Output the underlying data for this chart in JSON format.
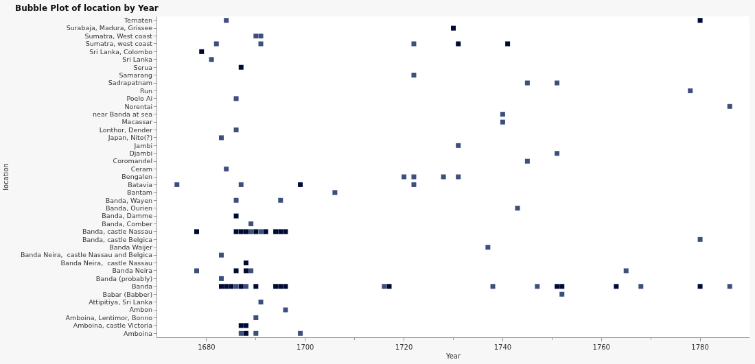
{
  "chart_data": {
    "type": "scatter",
    "title": "Bubble Plot of location by Year",
    "xlabel": "Year",
    "ylabel": "location",
    "orientation": "horizontal",
    "categories": [
      "Ternaten",
      "Surabaja, Madura, Grissee",
      "Sumatra, West coast",
      "Sumatra, west coast",
      "Sri Lanka, Colombo",
      "Sri Lanka",
      "Serua",
      "Samarang",
      "Sadrapatnam",
      "Run",
      "Poelo Ai",
      "Norentai",
      "near Banda at sea",
      "Macassar",
      "Lonthor, Dender",
      "Japan, Nito(?)",
      "Jambi",
      "Djambi",
      "Coromandel",
      "Ceram",
      "Bengalen",
      "Batavia",
      "Bantam",
      "Banda, Wayen",
      "Banda, Ourien",
      "Banda, Damme",
      "Banda, Comber",
      "Banda, castle Nassau",
      "Banda, castle Belgica",
      "Banda Waijer",
      "Banda Neira,  castle Nassau and Belgica",
      "Banda Neira,  castle Nassau",
      "Banda Neira",
      "Banda (probably)",
      "Banda",
      "Babar (Babber)",
      "Attipitiya, Sri Lanka",
      "Ambon",
      "Amboina, Lentimor, Bonno",
      "Amboina, castle Victoria",
      "Amboina"
    ],
    "xlim": [
      1670,
      1790
    ],
    "xticks": [
      1680,
      {
        "value": 1690,
        "label": null
      },
      1700,
      {
        "value": 1710,
        "label": null
      },
      1720,
      {
        "value": 1730,
        "label": null
      },
      1740,
      {
        "value": 1750,
        "label": null
      },
      1760,
      {
        "value": 1770,
        "label": null
      },
      1780
    ],
    "marker": "square",
    "series": [
      {
        "values": [
          1684,
          1730,
          1690,
          1682,
          1679,
          1681,
          1687,
          1722,
          1745,
          1778,
          1686,
          1786,
          1740,
          1740,
          1686,
          1683,
          1731,
          1751,
          1745,
          1684,
          1720,
          1674,
          1706,
          1686,
          1743,
          1686,
          1689,
          1678,
          1780,
          1737,
          1683,
          1688,
          1678,
          1683,
          1683,
          1752,
          1691,
          1696,
          1690,
          1687,
          1687
        ],
        "colors": [
          "#3d4f7c",
          "#000a33",
          "#3d4f7c",
          "#3d4f7c",
          "#000a33",
          "#3d4f7c",
          "#000a33",
          "#3d4f7c",
          "#3d4f7c",
          "#3d4f7c",
          "#3d4f7c",
          "#3d4f7c",
          "#3d4f7c",
          "#3d4f7c",
          "#3d4f7c",
          "#3d4f7c",
          "#3d4f7c",
          "#3d4f7c",
          "#3d4f7c",
          "#3d4f7c",
          "#3d4f7c",
          "#3d4f7c",
          "#3d4f7c",
          "#3d4f7c",
          "#3d4f7c",
          "#000a33",
          "#3d4f7c",
          "#000a33",
          "#3d4f7c",
          "#3d4f7c",
          "#3d4f7c",
          "#000a33",
          "#3d4f7c",
          "#3d4f7c",
          "#000a33",
          "#3d4f7c",
          "#3d4f7c",
          "#3d4f7c",
          "#3d4f7c",
          "#000a33",
          "#3d4f7c"
        ]
      },
      {
        "values": [
          1780,
          null,
          1691,
          1691,
          null,
          null,
          null,
          null,
          1751,
          null,
          null,
          null,
          null,
          null,
          null,
          null,
          null,
          null,
          null,
          null,
          1722,
          1687,
          null,
          1695,
          null,
          null,
          null,
          1686,
          null,
          null,
          null,
          null,
          1686,
          null,
          1684,
          null,
          null,
          null,
          null,
          1688,
          1688
        ],
        "colors": [
          "#000a33",
          null,
          "#3d4f7c",
          "#3d4f7c",
          null,
          null,
          null,
          null,
          "#3d4f7c",
          null,
          null,
          null,
          null,
          null,
          null,
          null,
          null,
          null,
          null,
          null,
          "#3d4f7c",
          "#3d4f7c",
          null,
          "#3d4f7c",
          null,
          null,
          null,
          "#000a33",
          null,
          null,
          null,
          null,
          "#000a33",
          null,
          "#000a33",
          null,
          null,
          null,
          null,
          "#000a33",
          "#000a33"
        ]
      },
      {
        "values": [
          null,
          null,
          null,
          1722,
          null,
          null,
          null,
          null,
          null,
          null,
          null,
          null,
          null,
          null,
          null,
          null,
          null,
          null,
          null,
          null,
          1728,
          1699,
          null,
          null,
          null,
          null,
          null,
          1687,
          null,
          null,
          null,
          null,
          1688,
          null,
          1685,
          null,
          null,
          null,
          null,
          null,
          1690
        ],
        "colors": [
          null,
          null,
          null,
          "#3d4f7c",
          null,
          null,
          null,
          null,
          null,
          null,
          null,
          null,
          null,
          null,
          null,
          null,
          null,
          null,
          null,
          null,
          "#3d4f7c",
          "#000a33",
          null,
          null,
          null,
          null,
          null,
          "#000a33",
          null,
          null,
          null,
          null,
          "#000a33",
          null,
          "#000a33",
          null,
          null,
          null,
          null,
          null,
          "#3d4f7c"
        ]
      },
      {
        "values": [
          null,
          null,
          null,
          1731,
          null,
          null,
          null,
          null,
          null,
          null,
          null,
          null,
          null,
          null,
          null,
          null,
          null,
          null,
          null,
          null,
          1731,
          1722,
          null,
          null,
          null,
          null,
          null,
          1688,
          null,
          null,
          null,
          null,
          1689,
          null,
          1686,
          null,
          null,
          null,
          null,
          null,
          1699
        ],
        "colors": [
          null,
          null,
          null,
          "#000a33",
          null,
          null,
          null,
          null,
          null,
          null,
          null,
          null,
          null,
          null,
          null,
          null,
          null,
          null,
          null,
          null,
          "#3d4f7c",
          "#3d4f7c",
          null,
          null,
          null,
          null,
          null,
          "#000a33",
          null,
          null,
          null,
          null,
          "#3d4f7c",
          null,
          "#3d4f7c",
          null,
          null,
          null,
          null,
          null,
          "#3d4f7c"
        ]
      },
      {
        "values": [
          null,
          null,
          null,
          1741,
          null,
          null,
          null,
          null,
          null,
          null,
          null,
          null,
          null,
          null,
          null,
          null,
          null,
          null,
          null,
          null,
          null,
          null,
          null,
          null,
          null,
          null,
          null,
          1689,
          null,
          null,
          null,
          null,
          1765,
          null,
          1687,
          null,
          null,
          null,
          null,
          null,
          null
        ],
        "colors": [
          null,
          null,
          null,
          "#000a33",
          null,
          null,
          null,
          null,
          null,
          null,
          null,
          null,
          null,
          null,
          null,
          null,
          null,
          null,
          null,
          null,
          null,
          null,
          null,
          null,
          null,
          null,
          null,
          "#3d4f7c",
          null,
          null,
          null,
          null,
          "#3d4f7c",
          null,
          "#000a33",
          null,
          null,
          null,
          null,
          null,
          null
        ]
      },
      {
        "values": [
          null,
          null,
          null,
          null,
          null,
          null,
          null,
          null,
          null,
          null,
          null,
          null,
          null,
          null,
          null,
          null,
          null,
          null,
          null,
          null,
          null,
          null,
          null,
          null,
          null,
          null,
          null,
          1690,
          null,
          null,
          null,
          null,
          null,
          null,
          1688,
          null,
          null,
          null,
          null,
          null,
          null
        ],
        "colors": [
          null,
          null,
          null,
          null,
          null,
          null,
          null,
          null,
          null,
          null,
          null,
          null,
          null,
          null,
          null,
          null,
          null,
          null,
          null,
          null,
          null,
          null,
          null,
          null,
          null,
          null,
          null,
          "#000a33",
          null,
          null,
          null,
          null,
          null,
          null,
          "#3d4f7c",
          null,
          null,
          null,
          null,
          null,
          null
        ]
      },
      {
        "values": [
          null,
          null,
          null,
          null,
          null,
          null,
          null,
          null,
          null,
          null,
          null,
          null,
          null,
          null,
          null,
          null,
          null,
          null,
          null,
          null,
          null,
          null,
          null,
          null,
          null,
          null,
          null,
          1691,
          null,
          null,
          null,
          null,
          null,
          null,
          1690,
          null,
          null,
          null,
          null,
          null,
          null
        ],
        "colors": [
          null,
          null,
          null,
          null,
          null,
          null,
          null,
          null,
          null,
          null,
          null,
          null,
          null,
          null,
          null,
          null,
          null,
          null,
          null,
          null,
          null,
          null,
          null,
          null,
          null,
          null,
          null,
          "#3d4f7c",
          null,
          null,
          null,
          null,
          null,
          null,
          "#000a33",
          null,
          null,
          null,
          null,
          null,
          null
        ]
      },
      {
        "values": [
          null,
          null,
          null,
          null,
          null,
          null,
          null,
          null,
          null,
          null,
          null,
          null,
          null,
          null,
          null,
          null,
          null,
          null,
          null,
          null,
          null,
          null,
          null,
          null,
          null,
          null,
          null,
          1692,
          null,
          null,
          null,
          null,
          null,
          null,
          1694,
          null,
          null,
          null,
          null,
          null,
          null
        ],
        "colors": [
          null,
          null,
          null,
          null,
          null,
          null,
          null,
          null,
          null,
          null,
          null,
          null,
          null,
          null,
          null,
          null,
          null,
          null,
          null,
          null,
          null,
          null,
          null,
          null,
          null,
          null,
          null,
          "#000a33",
          null,
          null,
          null,
          null,
          null,
          null,
          "#000a33",
          null,
          null,
          null,
          null,
          null,
          null
        ]
      },
      {
        "values": [
          null,
          null,
          null,
          null,
          null,
          null,
          null,
          null,
          null,
          null,
          null,
          null,
          null,
          null,
          null,
          null,
          null,
          null,
          null,
          null,
          null,
          null,
          null,
          null,
          null,
          null,
          null,
          1694,
          null,
          null,
          null,
          null,
          null,
          null,
          1695,
          null,
          null,
          null,
          null,
          null,
          null
        ],
        "colors": [
          null,
          null,
          null,
          null,
          null,
          null,
          null,
          null,
          null,
          null,
          null,
          null,
          null,
          null,
          null,
          null,
          null,
          null,
          null,
          null,
          null,
          null,
          null,
          null,
          null,
          null,
          null,
          "#000a33",
          null,
          null,
          null,
          null,
          null,
          null,
          "#000a33",
          null,
          null,
          null,
          null,
          null,
          null
        ]
      },
      {
        "values": [
          null,
          null,
          null,
          null,
          null,
          null,
          null,
          null,
          null,
          null,
          null,
          null,
          null,
          null,
          null,
          null,
          null,
          null,
          null,
          null,
          null,
          null,
          null,
          null,
          null,
          null,
          null,
          1695,
          null,
          null,
          null,
          null,
          null,
          null,
          1696,
          null,
          null,
          null,
          null,
          null,
          null
        ],
        "colors": [
          null,
          null,
          null,
          null,
          null,
          null,
          null,
          null,
          null,
          null,
          null,
          null,
          null,
          null,
          null,
          null,
          null,
          null,
          null,
          null,
          null,
          null,
          null,
          null,
          null,
          null,
          null,
          "#000a33",
          null,
          null,
          null,
          null,
          null,
          null,
          "#000a33",
          null,
          null,
          null,
          null,
          null,
          null
        ]
      },
      {
        "values": [
          null,
          null,
          null,
          null,
          null,
          null,
          null,
          null,
          null,
          null,
          null,
          null,
          null,
          null,
          null,
          null,
          null,
          null,
          null,
          null,
          null,
          null,
          null,
          null,
          null,
          null,
          null,
          1696,
          null,
          null,
          null,
          null,
          null,
          null,
          1716,
          null,
          null,
          null,
          null,
          null,
          null
        ],
        "colors": [
          null,
          null,
          null,
          null,
          null,
          null,
          null,
          null,
          null,
          null,
          null,
          null,
          null,
          null,
          null,
          null,
          null,
          null,
          null,
          null,
          null,
          null,
          null,
          null,
          null,
          null,
          null,
          "#000a33",
          null,
          null,
          null,
          null,
          null,
          null,
          "#3d4f7c",
          null,
          null,
          null,
          null,
          null,
          null
        ]
      },
      {
        "values": [
          null,
          null,
          null,
          null,
          null,
          null,
          null,
          null,
          null,
          null,
          null,
          null,
          null,
          null,
          null,
          null,
          null,
          null,
          null,
          null,
          null,
          null,
          null,
          null,
          null,
          null,
          null,
          null,
          null,
          null,
          null,
          null,
          null,
          null,
          1717,
          null,
          null,
          null,
          null,
          null,
          null
        ],
        "colors": [
          null,
          null,
          null,
          null,
          null,
          null,
          null,
          null,
          null,
          null,
          null,
          null,
          null,
          null,
          null,
          null,
          null,
          null,
          null,
          null,
          null,
          null,
          null,
          null,
          null,
          null,
          null,
          null,
          null,
          null,
          null,
          null,
          null,
          null,
          "#000a33",
          null,
          null,
          null,
          null,
          null,
          null
        ]
      },
      {
        "values": [
          null,
          null,
          null,
          null,
          null,
          null,
          null,
          null,
          null,
          null,
          null,
          null,
          null,
          null,
          null,
          null,
          null,
          null,
          null,
          null,
          null,
          null,
          null,
          null,
          null,
          null,
          null,
          null,
          null,
          null,
          null,
          null,
          null,
          null,
          1738,
          null,
          null,
          null,
          null,
          null,
          null
        ],
        "colors": [
          null,
          null,
          null,
          null,
          null,
          null,
          null,
          null,
          null,
          null,
          null,
          null,
          null,
          null,
          null,
          null,
          null,
          null,
          null,
          null,
          null,
          null,
          null,
          null,
          null,
          null,
          null,
          null,
          null,
          null,
          null,
          null,
          null,
          null,
          "#3d4f7c",
          null,
          null,
          null,
          null,
          null,
          null
        ]
      },
      {
        "values": [
          null,
          null,
          null,
          null,
          null,
          null,
          null,
          null,
          null,
          null,
          null,
          null,
          null,
          null,
          null,
          null,
          null,
          null,
          null,
          null,
          null,
          null,
          null,
          null,
          null,
          null,
          null,
          null,
          null,
          null,
          null,
          null,
          null,
          null,
          1747,
          null,
          null,
          null,
          null,
          null,
          null
        ],
        "colors": [
          null,
          null,
          null,
          null,
          null,
          null,
          null,
          null,
          null,
          null,
          null,
          null,
          null,
          null,
          null,
          null,
          null,
          null,
          null,
          null,
          null,
          null,
          null,
          null,
          null,
          null,
          null,
          null,
          null,
          null,
          null,
          null,
          null,
          null,
          "#3d4f7c",
          null,
          null,
          null,
          null,
          null,
          null
        ]
      },
      {
        "values": [
          null,
          null,
          null,
          null,
          null,
          null,
          null,
          null,
          null,
          null,
          null,
          null,
          null,
          null,
          null,
          null,
          null,
          null,
          null,
          null,
          null,
          null,
          null,
          null,
          null,
          null,
          null,
          null,
          null,
          null,
          null,
          null,
          null,
          null,
          1751,
          null,
          null,
          null,
          null,
          null,
          null
        ],
        "colors": [
          null,
          null,
          null,
          null,
          null,
          null,
          null,
          null,
          null,
          null,
          null,
          null,
          null,
          null,
          null,
          null,
          null,
          null,
          null,
          null,
          null,
          null,
          null,
          null,
          null,
          null,
          null,
          null,
          null,
          null,
          null,
          null,
          null,
          null,
          "#000a33",
          null,
          null,
          null,
          null,
          null,
          null
        ]
      },
      {
        "values": [
          null,
          null,
          null,
          null,
          null,
          null,
          null,
          null,
          null,
          null,
          null,
          null,
          null,
          null,
          null,
          null,
          null,
          null,
          null,
          null,
          null,
          null,
          null,
          null,
          null,
          null,
          null,
          null,
          null,
          null,
          null,
          null,
          null,
          null,
          1752,
          null,
          null,
          null,
          null,
          null,
          null
        ],
        "colors": [
          null,
          null,
          null,
          null,
          null,
          null,
          null,
          null,
          null,
          null,
          null,
          null,
          null,
          null,
          null,
          null,
          null,
          null,
          null,
          null,
          null,
          null,
          null,
          null,
          null,
          null,
          null,
          null,
          null,
          null,
          null,
          null,
          null,
          null,
          "#000a33",
          null,
          null,
          null,
          null,
          null,
          null
        ]
      },
      {
        "values": [
          null,
          null,
          null,
          null,
          null,
          null,
          null,
          null,
          null,
          null,
          null,
          null,
          null,
          null,
          null,
          null,
          null,
          null,
          null,
          null,
          null,
          null,
          null,
          null,
          null,
          null,
          null,
          null,
          null,
          null,
          null,
          null,
          null,
          null,
          1763,
          null,
          null,
          null,
          null,
          null,
          null
        ],
        "colors": [
          null,
          null,
          null,
          null,
          null,
          null,
          null,
          null,
          null,
          null,
          null,
          null,
          null,
          null,
          null,
          null,
          null,
          null,
          null,
          null,
          null,
          null,
          null,
          null,
          null,
          null,
          null,
          null,
          null,
          null,
          null,
          null,
          null,
          null,
          "#000a33",
          null,
          null,
          null,
          null,
          null,
          null
        ]
      },
      {
        "values": [
          null,
          null,
          null,
          null,
          null,
          null,
          null,
          null,
          null,
          null,
          null,
          null,
          null,
          null,
          null,
          null,
          null,
          null,
          null,
          null,
          null,
          null,
          null,
          null,
          null,
          null,
          null,
          null,
          null,
          null,
          null,
          null,
          null,
          null,
          1768,
          null,
          null,
          null,
          null,
          null,
          null
        ],
        "colors": [
          null,
          null,
          null,
          null,
          null,
          null,
          null,
          null,
          null,
          null,
          null,
          null,
          null,
          null,
          null,
          null,
          null,
          null,
          null,
          null,
          null,
          null,
          null,
          null,
          null,
          null,
          null,
          null,
          null,
          null,
          null,
          null,
          null,
          null,
          "#3d4f7c",
          null,
          null,
          null,
          null,
          null,
          null
        ]
      },
      {
        "values": [
          null,
          null,
          null,
          null,
          null,
          null,
          null,
          null,
          null,
          null,
          null,
          null,
          null,
          null,
          null,
          null,
          null,
          null,
          null,
          null,
          null,
          null,
          null,
          null,
          null,
          null,
          null,
          null,
          null,
          null,
          null,
          null,
          null,
          null,
          1780,
          null,
          null,
          null,
          null,
          null,
          null
        ],
        "colors": [
          null,
          null,
          null,
          null,
          null,
          null,
          null,
          null,
          null,
          null,
          null,
          null,
          null,
          null,
          null,
          null,
          null,
          null,
          null,
          null,
          null,
          null,
          null,
          null,
          null,
          null,
          null,
          null,
          null,
          null,
          null,
          null,
          null,
          null,
          "#000a33",
          null,
          null,
          null,
          null,
          null,
          null
        ]
      },
      {
        "values": [
          null,
          null,
          null,
          null,
          null,
          null,
          null,
          null,
          null,
          null,
          null,
          null,
          null,
          null,
          null,
          null,
          null,
          null,
          null,
          null,
          null,
          null,
          null,
          null,
          null,
          null,
          null,
          null,
          null,
          null,
          null,
          null,
          null,
          null,
          1786,
          null,
          null,
          null,
          null,
          null,
          null
        ],
        "colors": [
          null,
          null,
          null,
          null,
          null,
          null,
          null,
          null,
          null,
          null,
          null,
          null,
          null,
          null,
          null,
          null,
          null,
          null,
          null,
          null,
          null,
          null,
          null,
          null,
          null,
          null,
          null,
          null,
          null,
          null,
          null,
          null,
          null,
          null,
          "#3d4f7c",
          null,
          null,
          null,
          null,
          null,
          null
        ]
      }
    ]
  }
}
